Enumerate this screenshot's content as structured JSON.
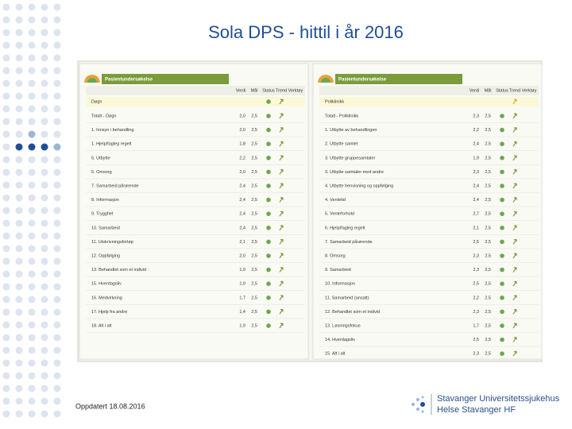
{
  "title": "Sola DPS - hittil i år 2016",
  "footer": {
    "updated": "Oppdatert  18.08.2016",
    "logo_line1": "Stavanger Universitetssjukehus",
    "logo_line2": "Helse Stavanger HF"
  },
  "panels": [
    {
      "header": "Pasientundersøkelse",
      "columns": [
        "Verdi",
        "Mål",
        "Status",
        "Trend",
        "Verktøy"
      ],
      "section": "Døgn",
      "rows": [
        [
          "Totalt - Døgn",
          "2,0",
          "2,5"
        ],
        [
          "1. Innsyn i behandling",
          "2,0",
          "2,5"
        ],
        [
          "1. Hjelp/fagleg regelt",
          "1,8",
          "2,5"
        ],
        [
          "5. Utbytte",
          "2,2",
          "2,5"
        ],
        [
          "5. Omsorg",
          "2,0",
          "2,5"
        ],
        [
          "7. Samarbeid pårørende",
          "2,4",
          "2,5"
        ],
        [
          "8. Informasjon",
          "2,4",
          "2,5"
        ],
        [
          "9. Trygghet",
          "2,4",
          "2,5"
        ],
        [
          "10. Samarbeid",
          "2,4",
          "2,5"
        ],
        [
          "11. Utskrivningsforløp",
          "2,1",
          "2,5"
        ],
        [
          "12. Oppfølging",
          "2,0",
          "2,5"
        ],
        [
          "13. Behandlet som et individ",
          "1,9",
          "2,5"
        ],
        [
          "15. Hverdagsliv",
          "1,9",
          "2,5"
        ],
        [
          "16. Medvirkning",
          "1,7",
          "2,5"
        ],
        [
          "17. Hjelp fra andre",
          "1,4",
          "2,5"
        ],
        [
          "18. Alt i alt",
          "1,9",
          "2,5"
        ]
      ]
    },
    {
      "header": "Pasientundersøkelse",
      "columns": [
        "Verdi",
        "Mål",
        "Status",
        "Trend",
        "Verktøy"
      ],
      "section": "Poliklinikk",
      "rows": [
        [
          "Totalt - Poliklinikk",
          "2,3",
          "2,5"
        ],
        [
          "1. Utbytte av behandlingen",
          "2,2",
          "2,5"
        ],
        [
          "2. Utbytte samlet",
          "2,4",
          "2,5"
        ],
        [
          "3. Utbytte gruppesamtaler",
          "1,9",
          "2,5"
        ],
        [
          "3. Utbytte samtaler med andre",
          "2,3",
          "2,5"
        ],
        [
          "4. Utbytte henvisning og oppfølging",
          "2,4",
          "2,5"
        ],
        [
          "4. Ventetid",
          "2,4",
          "2,5"
        ],
        [
          "5. Venteforhold",
          "2,7",
          "2,5"
        ],
        [
          "6. Hjelp/fagleg regelt",
          "2,1",
          "2,5"
        ],
        [
          "7. Samarbeid pårørende",
          "2,5",
          "2,5"
        ],
        [
          "8. Omsorg",
          "2,3",
          "2,5"
        ],
        [
          "9. Samarbeid",
          "2,3",
          "2,5"
        ],
        [
          "10. Informasjon",
          "2,5",
          "2,5"
        ],
        [
          "11. Samarbeid (ansatt)",
          "2,2",
          "2,5"
        ],
        [
          "12. Behandlet som et individ",
          "2,3",
          "2,5"
        ],
        [
          "13. Løsningsfokus",
          "1,7",
          "2,5"
        ],
        [
          "14. Hverdagsliv",
          "2,5",
          "2,5"
        ],
        [
          "15. Alt i alt",
          "2,3",
          "2,5"
        ]
      ]
    }
  ]
}
